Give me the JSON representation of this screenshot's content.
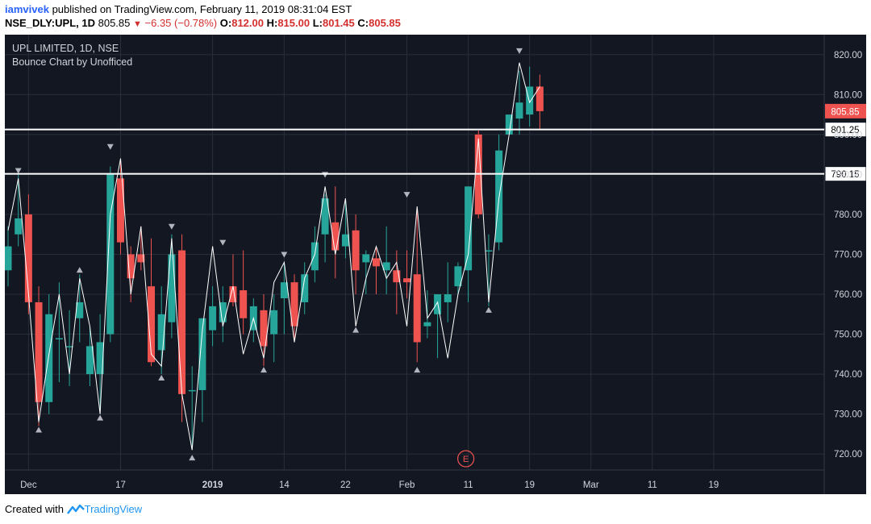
{
  "header": {
    "user": "iamvivek",
    "published_text": "published on TradingView.com, February 11, 2019 08:31:04 EST",
    "symbol": "NSE_DLY:UPL, 1D",
    "last": "805.85",
    "change": "−6.35 (−0.78%)",
    "open_label": "O:",
    "open": "812.00",
    "high_label": "H:",
    "high": "815.00",
    "low_label": "L:",
    "low": "801.45",
    "close_label": "C:",
    "close": "805.85"
  },
  "footer": {
    "created_with": "Created with",
    "brand": "TradingView"
  },
  "colors": {
    "background": "#131722",
    "up": "#26a69a",
    "down": "#ef5350",
    "grid": "#2a2e39",
    "line": "#ffffff",
    "marker": "#b2b5be"
  },
  "chart_data": {
    "type": "candlestick",
    "title": "UPL LIMITED, 1D, NSE",
    "subtitle": "Bounce Chart by Unofficed",
    "ylim": [
      716,
      825
    ],
    "y_ticks": [
      720,
      730,
      740,
      750,
      760,
      770,
      780,
      790,
      800,
      810,
      820
    ],
    "x_ticks": [
      "Dec",
      "17",
      "2019",
      "14",
      "22",
      "Feb",
      "11",
      "19",
      "Mar",
      "11",
      "19"
    ],
    "x_tick_index": [
      2,
      11,
      20,
      27,
      33,
      39,
      45,
      51,
      57,
      63,
      69
    ],
    "bold_ticks": [
      "2019"
    ],
    "price_label": "805.85",
    "levels": [
      {
        "label": "801.25",
        "value": 801.25
      },
      {
        "label": "790.15",
        "value": 790.15
      }
    ],
    "candles": [
      {
        "o": 766,
        "h": 777,
        "l": 762,
        "c": 772
      },
      {
        "o": 775,
        "h": 790,
        "l": 772,
        "c": 779
      },
      {
        "o": 780,
        "h": 785,
        "l": 755,
        "c": 758
      },
      {
        "o": 758,
        "h": 762,
        "l": 727,
        "c": 733
      },
      {
        "o": 733,
        "h": 760,
        "l": 730,
        "c": 755
      },
      {
        "o": 749,
        "h": 763,
        "l": 738,
        "c": 749
      },
      {
        "o": 747,
        "h": 756,
        "l": 737,
        "c": 747
      },
      {
        "o": 754,
        "h": 765,
        "l": 748,
        "c": 758
      },
      {
        "o": 740,
        "h": 752,
        "l": 737,
        "c": 747
      },
      {
        "o": 740,
        "h": 755,
        "l": 730,
        "c": 748
      },
      {
        "o": 750,
        "h": 792,
        "l": 748,
        "c": 790
      },
      {
        "o": 789,
        "h": 794,
        "l": 770,
        "c": 773
      },
      {
        "o": 770,
        "h": 772,
        "l": 758,
        "c": 764
      },
      {
        "o": 770,
        "h": 777,
        "l": 766,
        "c": 768
      },
      {
        "o": 762,
        "h": 774,
        "l": 742,
        "c": 743
      },
      {
        "o": 746,
        "h": 762,
        "l": 740,
        "c": 755
      },
      {
        "o": 753,
        "h": 775,
        "l": 749,
        "c": 770
      },
      {
        "o": 771,
        "h": 775,
        "l": 728,
        "c": 735
      },
      {
        "o": 736,
        "h": 742,
        "l": 721,
        "c": 736
      },
      {
        "o": 736,
        "h": 753,
        "l": 728,
        "c": 754
      },
      {
        "o": 751,
        "h": 762,
        "l": 747,
        "c": 757
      },
      {
        "o": 753,
        "h": 762,
        "l": 748,
        "c": 758
      },
      {
        "o": 762,
        "h": 770,
        "l": 757,
        "c": 758
      },
      {
        "o": 761,
        "h": 771,
        "l": 750,
        "c": 754
      },
      {
        "o": 751,
        "h": 759,
        "l": 748,
        "c": 757
      },
      {
        "o": 756,
        "h": 760,
        "l": 742,
        "c": 747
      },
      {
        "o": 750,
        "h": 760,
        "l": 743,
        "c": 756
      },
      {
        "o": 759,
        "h": 768,
        "l": 750,
        "c": 763
      },
      {
        "o": 763,
        "h": 765,
        "l": 748,
        "c": 752
      },
      {
        "o": 758,
        "h": 768,
        "l": 755,
        "c": 765
      },
      {
        "o": 766,
        "h": 777,
        "l": 763,
        "c": 773
      },
      {
        "o": 775,
        "h": 785,
        "l": 768,
        "c": 784
      },
      {
        "o": 778,
        "h": 787,
        "l": 764,
        "c": 771
      },
      {
        "o": 772,
        "h": 783,
        "l": 769,
        "c": 775
      },
      {
        "o": 776,
        "h": 780,
        "l": 760,
        "c": 766
      },
      {
        "o": 768,
        "h": 771,
        "l": 760,
        "c": 770
      },
      {
        "o": 769,
        "h": 772,
        "l": 760,
        "c": 767
      },
      {
        "o": 766,
        "h": 777,
        "l": 760,
        "c": 768
      },
      {
        "o": 766,
        "h": 771,
        "l": 755,
        "c": 763
      },
      {
        "o": 764,
        "h": 771,
        "l": 759,
        "c": 763
      },
      {
        "o": 765,
        "h": 781,
        "l": 743,
        "c": 748
      },
      {
        "o": 752,
        "h": 761,
        "l": 749,
        "c": 753
      },
      {
        "o": 755,
        "h": 760,
        "l": 744,
        "c": 760
      },
      {
        "o": 758,
        "h": 768,
        "l": 753,
        "c": 760
      },
      {
        "o": 762,
        "h": 768,
        "l": 760,
        "c": 767
      },
      {
        "o": 766,
        "h": 786,
        "l": 758,
        "c": 787
      },
      {
        "o": 800,
        "h": 801,
        "l": 779,
        "c": 780
      },
      {
        "o": 771,
        "h": 775,
        "l": 757,
        "c": 771
      },
      {
        "o": 773,
        "h": 800,
        "l": 771,
        "c": 796
      },
      {
        "o": 800,
        "h": 804,
        "l": 800,
        "c": 805
      },
      {
        "o": 804,
        "h": 816,
        "l": 800,
        "c": 808
      },
      {
        "o": 805,
        "h": 817,
        "l": 802,
        "c": 812
      },
      {
        "o": 812,
        "h": 815,
        "l": 801.45,
        "c": 805.85
      }
    ],
    "bounce_line": [
      [
        0,
        776
      ],
      [
        1,
        789
      ],
      [
        2,
        760
      ],
      [
        3,
        728
      ],
      [
        4,
        745
      ],
      [
        5,
        760
      ],
      [
        6,
        740
      ],
      [
        7,
        764
      ],
      [
        8,
        752
      ],
      [
        9,
        730
      ],
      [
        10,
        780
      ],
      [
        11,
        794
      ],
      [
        12,
        760
      ],
      [
        13,
        777
      ],
      [
        14,
        745
      ],
      [
        15,
        742
      ],
      [
        16,
        774
      ],
      [
        17,
        735
      ],
      [
        18,
        721
      ],
      [
        19,
        751
      ],
      [
        20,
        772
      ],
      [
        21,
        752
      ],
      [
        22,
        762
      ],
      [
        23,
        745
      ],
      [
        24,
        754
      ],
      [
        25,
        744
      ],
      [
        26,
        763
      ],
      [
        27,
        768
      ],
      [
        28,
        748
      ],
      [
        29,
        764
      ],
      [
        30,
        770
      ],
      [
        31,
        787
      ],
      [
        32,
        770
      ],
      [
        33,
        784
      ],
      [
        34,
        752
      ],
      [
        35,
        764
      ],
      [
        36,
        772
      ],
      [
        37,
        764
      ],
      [
        38,
        768
      ],
      [
        39,
        752
      ],
      [
        40,
        782
      ],
      [
        41,
        754
      ],
      [
        42,
        758
      ],
      [
        43,
        744
      ],
      [
        44,
        760
      ],
      [
        45,
        770
      ],
      [
        46,
        799
      ],
      [
        47,
        758
      ],
      [
        48,
        784
      ],
      [
        49,
        800
      ],
      [
        50,
        818
      ],
      [
        51,
        808
      ],
      [
        52,
        812
      ]
    ],
    "markers": [
      {
        "i": 1,
        "dir": "down",
        "v": 791
      },
      {
        "i": 3,
        "dir": "up",
        "v": 726
      },
      {
        "i": 7,
        "dir": "up",
        "v": 766
      },
      {
        "i": 9,
        "dir": "up",
        "v": 729
      },
      {
        "i": 10,
        "dir": "down",
        "v": 797
      },
      {
        "i": 15,
        "dir": "up",
        "v": 739
      },
      {
        "i": 16,
        "dir": "down",
        "v": 777
      },
      {
        "i": 18,
        "dir": "up",
        "v": 719
      },
      {
        "i": 21,
        "dir": "down",
        "v": 773
      },
      {
        "i": 25,
        "dir": "up",
        "v": 741
      },
      {
        "i": 27,
        "dir": "down",
        "v": 770
      },
      {
        "i": 31,
        "dir": "down",
        "v": 790
      },
      {
        "i": 34,
        "dir": "up",
        "v": 751
      },
      {
        "i": 39,
        "dir": "down",
        "v": 785
      },
      {
        "i": 40,
        "dir": "up",
        "v": 741
      },
      {
        "i": 47,
        "dir": "up",
        "v": 756
      },
      {
        "i": 50,
        "dir": "down",
        "v": 821
      }
    ],
    "earnings_marker": {
      "label": "E",
      "index": 45
    }
  }
}
